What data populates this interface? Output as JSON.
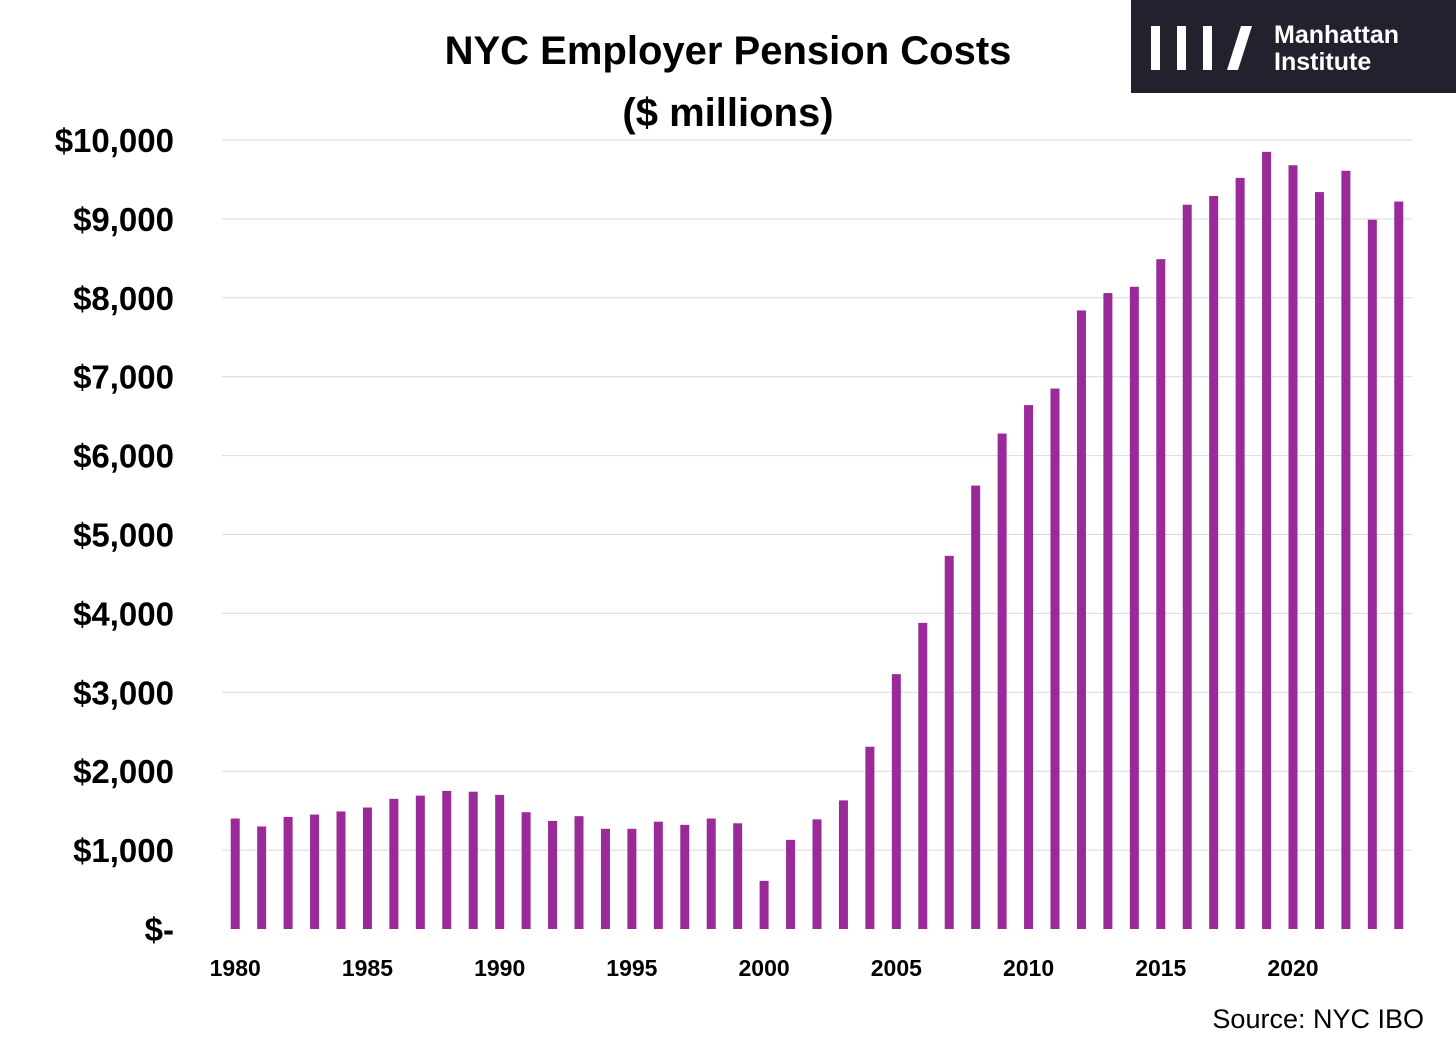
{
  "chart_data": {
    "type": "bar",
    "title": "NYC Employer Pension Costs",
    "subtitle": "($ millions)",
    "xlabel": "",
    "ylabel": "",
    "ylim": [
      0,
      10000
    ],
    "yticks": [
      0,
      1000,
      2000,
      3000,
      4000,
      5000,
      6000,
      7000,
      8000,
      9000,
      10000
    ],
    "ytick_labels": [
      "$-",
      "$1,000",
      "$2,000",
      "$3,000",
      "$4,000",
      "$5,000",
      "$6,000",
      "$7,000",
      "$8,000",
      "$9,000",
      "$10,000"
    ],
    "xtick_labels": [
      "1980",
      "1985",
      "1990",
      "1995",
      "2000",
      "2005",
      "2010",
      "2015",
      "2020"
    ],
    "grid": true,
    "bar_color": "#9a2a98",
    "categories": [
      "1980",
      "1981",
      "1982",
      "1983",
      "1984",
      "1985",
      "1986",
      "1987",
      "1988",
      "1989",
      "1990",
      "1991",
      "1992",
      "1993",
      "1994",
      "1995",
      "1996",
      "1997",
      "1998",
      "1999",
      "2000",
      "2001",
      "2002",
      "2003",
      "2004",
      "2005",
      "2006",
      "2007",
      "2008",
      "2009",
      "2010",
      "2011",
      "2012",
      "2013",
      "2014",
      "2015",
      "2016",
      "2017",
      "2018",
      "2019",
      "2020",
      "2021",
      "2022",
      "2023",
      "2024"
    ],
    "values": [
      1400,
      1300,
      1420,
      1450,
      1490,
      1540,
      1650,
      1690,
      1750,
      1740,
      1700,
      1480,
      1370,
      1430,
      1270,
      1270,
      1360,
      1320,
      1400,
      1340,
      610,
      1130,
      1390,
      1630,
      2310,
      3230,
      3880,
      4730,
      5620,
      6280,
      6640,
      6850,
      7840,
      8060,
      8140,
      8490,
      9180,
      9290,
      9520,
      9850,
      9680,
      9340,
      9610,
      8990,
      9220
    ],
    "source": "Source: NYC IBO"
  },
  "logo": {
    "line1": "Manhattan",
    "line2": "Institute",
    "background": "#22212e"
  }
}
